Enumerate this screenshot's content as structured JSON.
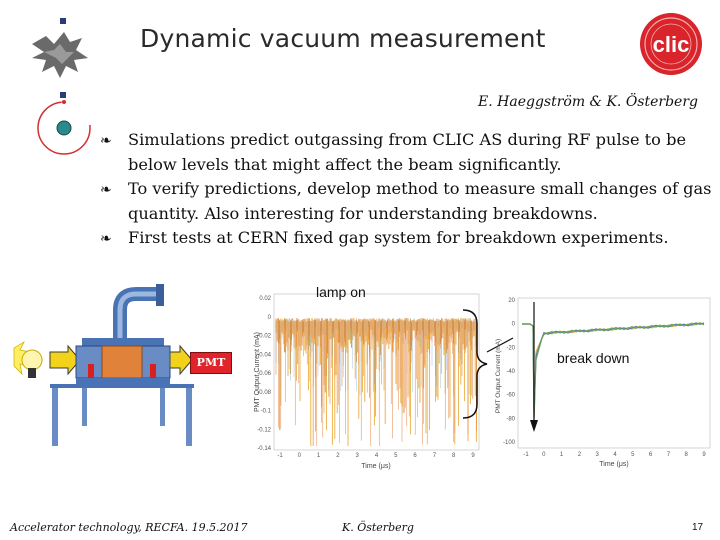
{
  "slide": {
    "title": "Dynamic vacuum measurement",
    "authors": "E. Haeggström & K. Österberg",
    "bullets": [
      {
        "text": "Simulations predict outgassing from CLIC AS during RF pulse to be below levels that might affect the beam significantly.",
        "icon": "cycle-bullet-icon"
      },
      {
        "text": "To verify predictions, develop method to measure small changes of gas quantity. Also interesting for understanding breakdowns.",
        "icon": "cycle-bullet-icon"
      },
      {
        "text": "First tests at CERN fixed gap system for breakdown experiments.",
        "icon": "cycle-bullet-icon"
      }
    ],
    "bullet_glyph": "❧",
    "figure_labels": {
      "lamp_on": "lamp on",
      "break_down": "break down",
      "pmt": "PMT"
    },
    "footer": {
      "left": "Accelerator technology, RECFA. 19.5.2017",
      "center": "K. Österberg",
      "page": "17"
    },
    "logo_text": "CLIC",
    "colors": {
      "signal": "#e8a020",
      "signal_dark": "#3a6fb0",
      "clic_red": "#d8242a",
      "pmt_red": "#e0242b"
    }
  },
  "chart_data": [
    {
      "type": "line",
      "xlabel": "Time (μs)",
      "ylabel": "PMT Output Current (mA)",
      "x_ticks": [
        "-1",
        "0",
        "1",
        "2",
        "3",
        "4",
        "5",
        "6",
        "7",
        "8",
        "9"
      ],
      "y_ticks": [
        "0.02",
        "0",
        "-0.02",
        "-0.04",
        "-0.06",
        "-0.08",
        "-0.1",
        "-0.12",
        "-0.14"
      ],
      "xlim": [
        -1,
        9.5
      ],
      "ylim": [
        -0.14,
        0.02
      ],
      "description_series": [
        {
          "values_range": [
            -0.1,
            0.005
          ]
        }
      ]
    },
    {
      "type": "line",
      "xlabel": "Time (μs)",
      "ylabel": "PMT Output Current (mA)",
      "x_ticks": [
        "-1",
        "0",
        "1",
        "2",
        "3",
        "4",
        "5",
        "6",
        "7",
        "8",
        "9"
      ],
      "y_ticks": [
        "20",
        "0",
        "-20",
        "-40",
        "-60",
        "-80",
        "-100"
      ],
      "xlim": [
        -1,
        9.5
      ],
      "ylim": [
        -100,
        20
      ]
    }
  ]
}
